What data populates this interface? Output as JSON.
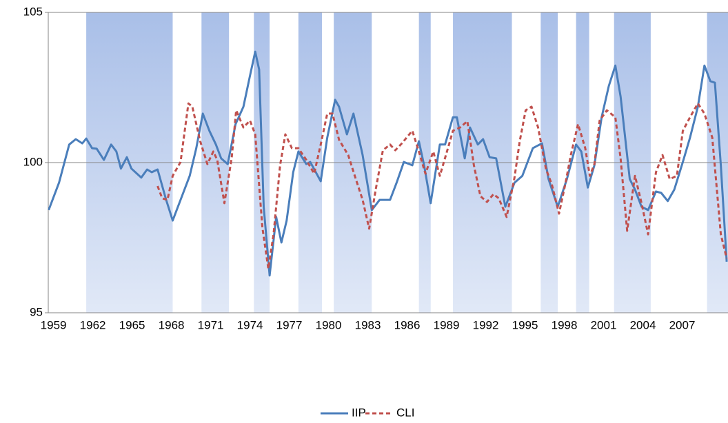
{
  "chart_data": {
    "type": "line",
    "xlim": [
      1958.6,
      2010.5
    ],
    "xticks": [
      1959,
      1962,
      1965,
      1968,
      1971,
      1974,
      1977,
      1980,
      1983,
      1986,
      1989,
      1992,
      1995,
      1998,
      2001,
      2004,
      2007
    ],
    "ylim": [
      95,
      105
    ],
    "yticks": [
      95,
      100,
      105
    ],
    "grid": true,
    "legend": "bottom",
    "bands": [
      [
        1961.5,
        1968.1
      ],
      [
        1970.3,
        1972.4
      ],
      [
        1974.3,
        1975.5
      ],
      [
        1977.7,
        1979.5
      ],
      [
        1980.4,
        1983.3
      ],
      [
        1986.9,
        1987.8
      ],
      [
        1989.5,
        1994.0
      ],
      [
        1996.2,
        1997.5
      ],
      [
        1998.9,
        1999.9
      ],
      [
        2001.8,
        2004.6
      ],
      [
        2008.9,
        2010.5
      ]
    ],
    "band_color": "#a9bfe8",
    "series": [
      {
        "name": "IIP",
        "color": "#4a7ebb",
        "dash": false,
        "x": [
          1958.63,
          1959.42,
          1960.2,
          1960.7,
          1961.2,
          1961.5,
          1961.95,
          1962.3,
          1962.85,
          1963.4,
          1963.8,
          1964.15,
          1964.6,
          1964.95,
          1965.7,
          1966.15,
          1966.5,
          1966.95,
          1967.6,
          1968.1,
          1968.7,
          1969.4,
          1969.9,
          1970.4,
          1970.9,
          1971.4,
          1971.8,
          1972.3,
          1972.9,
          1973.5,
          1974.0,
          1974.4,
          1974.7,
          1975.05,
          1975.5,
          1976.0,
          1976.4,
          1976.8,
          1977.3,
          1977.7,
          1978.3,
          1978.6,
          1979.4,
          1979.9,
          1980.5,
          1980.8,
          1981.4,
          1981.9,
          1982.6,
          1983.3,
          1983.9,
          1984.7,
          1985.2,
          1985.75,
          1986.4,
          1986.9,
          1987.3,
          1987.8,
          1988.5,
          1988.9,
          1989.5,
          1989.8,
          1990.4,
          1990.8,
          1991.4,
          1991.8,
          1992.3,
          1992.8,
          1993.5,
          1994.2,
          1994.8,
          1995.6,
          1996.3,
          1996.8,
          1997.5,
          1998.2,
          1998.9,
          1999.3,
          1999.8,
          2000.3,
          2000.85,
          2001.4,
          2001.9,
          2002.3,
          2003.0,
          2003.4,
          2003.9,
          2004.4,
          2005.0,
          2005.4,
          2005.9,
          2006.4,
          2007.05,
          2007.6,
          2008.2,
          2008.7,
          2009.15,
          2009.5,
          2009.95,
          2010.4
        ],
        "values": [
          98.42,
          99.33,
          100.6,
          100.78,
          100.64,
          100.8,
          100.48,
          100.46,
          100.09,
          100.6,
          100.37,
          99.8,
          100.18,
          99.8,
          99.5,
          99.77,
          99.68,
          99.77,
          98.76,
          98.07,
          98.76,
          99.56,
          100.48,
          101.63,
          101.06,
          100.6,
          100.14,
          99.95,
          101.28,
          101.86,
          102.89,
          103.69,
          103.1,
          98.53,
          96.24,
          98.19,
          97.34,
          98.07,
          99.68,
          100.37,
          99.95,
          100.02,
          99.38,
          100.83,
          102.09,
          101.86,
          100.94,
          101.63,
          100.25,
          98.42,
          98.76,
          98.76,
          99.33,
          100.02,
          99.91,
          100.71,
          99.91,
          98.65,
          100.6,
          100.6,
          101.51,
          101.51,
          100.14,
          101.17,
          100.6,
          100.78,
          100.18,
          100.14,
          98.53,
          99.33,
          99.56,
          100.48,
          100.64,
          99.45,
          98.53,
          99.45,
          100.6,
          100.37,
          99.17,
          99.91,
          101.51,
          102.55,
          103.23,
          102.2,
          99.45,
          99.1,
          98.53,
          98.42,
          99.04,
          98.99,
          98.72,
          99.1,
          100.02,
          100.83,
          101.86,
          103.23,
          102.71,
          102.66,
          99.91,
          96.7
        ]
      },
      {
        "name": "CLI",
        "color": "#c0504d",
        "dash": true,
        "x": [
          1966.95,
          1967.3,
          1967.7,
          1968.1,
          1968.7,
          1969.3,
          1969.6,
          1970.2,
          1970.75,
          1971.2,
          1971.5,
          1972.05,
          1972.6,
          1972.95,
          1973.5,
          1974.0,
          1974.4,
          1974.95,
          1975.4,
          1975.8,
          1976.3,
          1976.7,
          1977.2,
          1977.7,
          1978.3,
          1978.9,
          1979.4,
          1979.9,
          1980.3,
          1980.8,
          1981.5,
          1982.0,
          1982.6,
          1983.1,
          1983.6,
          1984.15,
          1984.7,
          1985.1,
          1985.6,
          1986.4,
          1986.9,
          1987.4,
          1988.0,
          1988.5,
          1989.2,
          1989.5,
          1990.05,
          1990.6,
          1991.1,
          1991.6,
          1992.1,
          1992.6,
          1993.0,
          1993.6,
          1994.2,
          1994.6,
          1995.05,
          1995.5,
          1996.0,
          1996.6,
          1997.05,
          1997.6,
          1998.1,
          1998.5,
          1999.05,
          1999.6,
          1999.95,
          2000.3,
          2000.7,
          2001.25,
          2001.9,
          2002.3,
          2002.8,
          2003.4,
          2003.9,
          2004.4,
          2005.0,
          2005.5,
          2006.05,
          2006.6,
          2007.05,
          2007.6,
          2008.2,
          2008.7,
          2009.3,
          2009.95,
          2010.4
        ],
        "values": [
          99.22,
          98.81,
          98.76,
          99.56,
          100.02,
          101.97,
          101.86,
          100.71,
          99.95,
          100.37,
          100.09,
          98.65,
          100.14,
          101.74,
          101.17,
          101.4,
          100.94,
          97.84,
          96.47,
          97.61,
          99.91,
          100.94,
          100.48,
          100.48,
          100.09,
          99.63,
          100.6,
          101.63,
          101.63,
          100.76,
          100.25,
          99.56,
          98.76,
          97.8,
          99.1,
          100.41,
          100.6,
          100.41,
          100.64,
          101.06,
          100.37,
          99.63,
          100.37,
          99.56,
          100.6,
          101.06,
          101.17,
          101.38,
          99.91,
          98.88,
          98.69,
          98.95,
          98.81,
          98.19,
          99.5,
          100.71,
          101.74,
          101.86,
          101.17,
          99.79,
          99.27,
          98.3,
          99.33,
          100.25,
          101.28,
          100.48,
          99.56,
          99.95,
          101.4,
          101.74,
          101.51,
          100.14,
          97.73,
          99.56,
          98.65,
          97.61,
          99.68,
          100.25,
          99.45,
          99.56,
          101.06,
          101.51,
          101.97,
          101.63,
          100.83,
          97.61,
          96.81
        ]
      }
    ]
  }
}
